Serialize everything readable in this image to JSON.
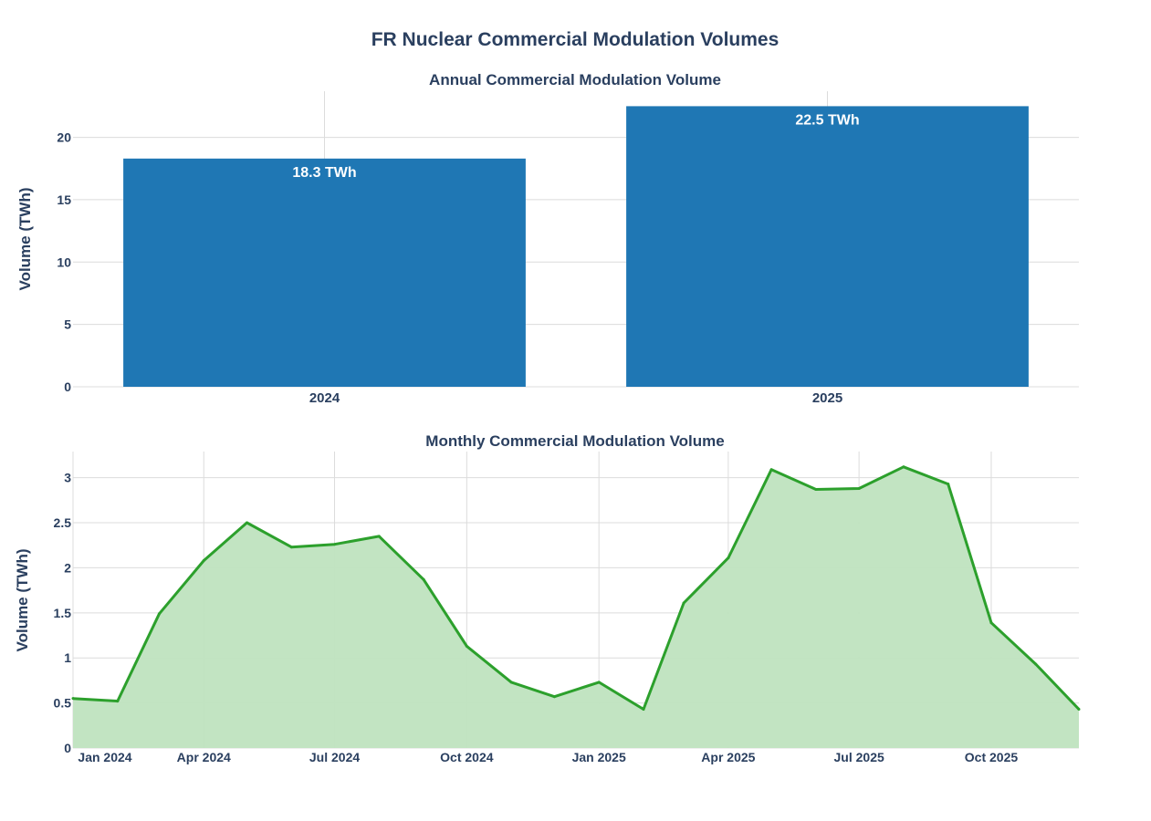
{
  "figure": {
    "title": "FR Nuclear Commercial Modulation Volumes"
  },
  "colors": {
    "bar": "#1f77b4",
    "line": "#2ca02c",
    "area": "#bfe3bf",
    "text": "#2a3f5f",
    "grid": "#dcdcdc"
  },
  "chart_data": [
    {
      "type": "bar",
      "title": "Annual Commercial Modulation Volume",
      "categories": [
        "2024",
        "2025"
      ],
      "values": [
        18.3,
        22.5
      ],
      "labels": [
        "18.3 TWh",
        "22.5 TWh"
      ],
      "xlabel": "",
      "ylabel": "Volume (TWh)",
      "ylim": [
        0,
        23.7
      ],
      "yticks": [
        0,
        5,
        10,
        15,
        20
      ],
      "ytick_labels": [
        "0",
        "5",
        "10",
        "15",
        "20"
      ],
      "grid": true
    },
    {
      "type": "area",
      "title": "Monthly Commercial Modulation Volume",
      "x": [
        "2024-01",
        "2024-02",
        "2024-03",
        "2024-04",
        "2024-05",
        "2024-06",
        "2024-07",
        "2024-08",
        "2024-09",
        "2024-10",
        "2024-11",
        "2024-12",
        "2025-01",
        "2025-02",
        "2025-03",
        "2025-04",
        "2025-05",
        "2025-06",
        "2025-07",
        "2025-08",
        "2025-09",
        "2025-10",
        "2025-11",
        "2025-12"
      ],
      "values": [
        0.55,
        0.52,
        1.49,
        2.08,
        2.5,
        2.23,
        2.26,
        2.35,
        1.87,
        1.13,
        0.73,
        0.57,
        0.73,
        0.43,
        1.61,
        2.11,
        3.09,
        2.87,
        2.88,
        3.12,
        2.93,
        1.39,
        0.93,
        0.43
      ],
      "xlabel": "",
      "ylabel": "Volume (TWh)",
      "ylim": [
        0,
        3.29
      ],
      "yticks": [
        0,
        0.5,
        1,
        1.5,
        2,
        2.5,
        3
      ],
      "ytick_labels": [
        "0",
        "0.5",
        "1",
        "1.5",
        "2",
        "2.5",
        "3"
      ],
      "xticks": [
        "2024-01",
        "2024-04",
        "2024-07",
        "2024-10",
        "2025-01",
        "2025-04",
        "2025-07",
        "2025-10"
      ],
      "xtick_labels": [
        "Jan 2024",
        "Apr 2024",
        "Jul 2024",
        "Oct 2024",
        "Jan 2025",
        "Apr 2025",
        "Jul 2025",
        "Oct 2025"
      ],
      "grid": true
    }
  ]
}
